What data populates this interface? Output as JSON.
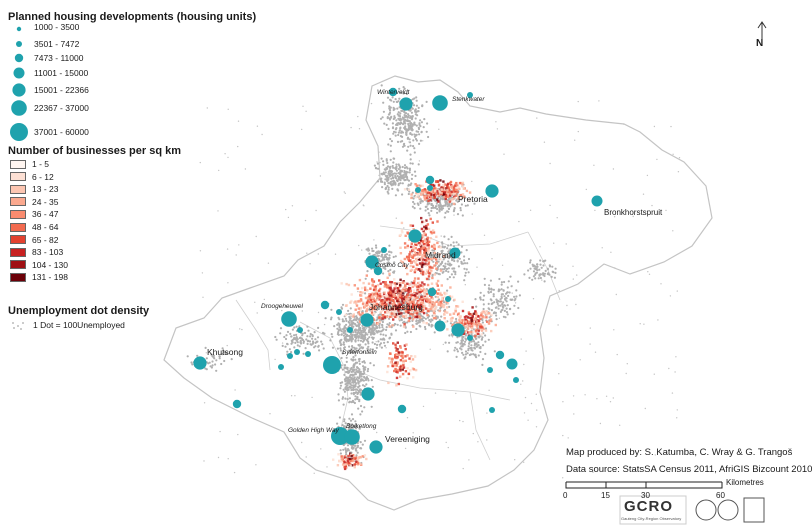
{
  "legend": {
    "housing": {
      "title": "Planned housing developments (housing units)",
      "classes": [
        "1000 - 3500",
        "3501 - 7472",
        "7473 - 11000",
        "11001 - 15000",
        "15001 - 22366",
        "22367 - 37000",
        "37001 - 60000"
      ],
      "color": "#1fa2ad"
    },
    "businesses": {
      "title": "Number of businesses per sq km",
      "classes": [
        {
          "label": "1 - 5",
          "color": "#fff5f0"
        },
        {
          "label": "6 - 12",
          "color": "#fde0d4"
        },
        {
          "label": "13 - 23",
          "color": "#fcc6b2"
        },
        {
          "label": "24 - 35",
          "color": "#fba98f"
        },
        {
          "label": "36 - 47",
          "color": "#f98b6f"
        },
        {
          "label": "48 - 64",
          "color": "#f26a4f"
        },
        {
          "label": "65 - 82",
          "color": "#e2412f"
        },
        {
          "label": "83 - 103",
          "color": "#c72121"
        },
        {
          "label": "104 - 130",
          "color": "#a01014"
        },
        {
          "label": "131 - 198",
          "color": "#6b0008"
        }
      ]
    },
    "unemployment": {
      "title": "Unemployment dot density",
      "label": "1 Dot = 100Unemployed",
      "dot_color": "#a8a8a8"
    }
  },
  "places": {
    "winterveldt": "Winterveldt",
    "stenkwater": "Stenkwater",
    "pretoria": "Pretoria",
    "bronkhorstspruit": "Bronkhorstspruit",
    "midrand": "Midrand",
    "cosmo_city": "Cosmo City",
    "droogeheuwel": "Droogeheuwel",
    "johannesburg": "Johannesburg",
    "khutsong": "Khutsong",
    "syferfontein": "Syferfontein",
    "boiketlong": "Boiketlong",
    "golden_high_way": "Golden High Way",
    "vereeniging": "Vereeniging"
  },
  "credits": {
    "produced_by": "Map produced by: S. Katumba, C. Wray & G. Trangoš",
    "source": "Data source: StatsSA Census 2011, AfriGIS Bizcount 2010"
  },
  "scale_bar": {
    "ticks": [
      "0",
      "15",
      "30",
      "60"
    ],
    "unit": "Kilometres"
  },
  "north_arrow": "N",
  "logos": {
    "gcro": "GCRO",
    "gcro_subtitle": "Gauteng City-Region Observatory"
  },
  "map_data": {
    "housing_points": [
      {
        "place": "Winterveldt",
        "class": 4
      },
      {
        "place": "Winterveldt",
        "class": 2
      },
      {
        "place": "Stenkwater",
        "class": 5
      },
      {
        "place": "Stenkwater",
        "class": 1
      },
      {
        "place": "Pretoria",
        "class": 4
      },
      {
        "place": "Pretoria",
        "class": 2
      },
      {
        "place": "Bronkhorstspruit",
        "class": 3
      },
      {
        "place": "Midrand",
        "class": 4
      },
      {
        "place": "Midrand",
        "class": 3
      },
      {
        "place": "Cosmo City",
        "class": 4
      },
      {
        "place": "Droogeheuwel",
        "class": 5
      },
      {
        "place": "Johannesburg",
        "class": 4
      },
      {
        "place": "Khutsong",
        "class": 4
      },
      {
        "place": "Syferfontein",
        "class": 6
      },
      {
        "place": "Golden High Way",
        "class": 6
      },
      {
        "place": "Golden High Way",
        "class": 5
      },
      {
        "place": "Vereeniging",
        "class": 4
      }
    ]
  }
}
